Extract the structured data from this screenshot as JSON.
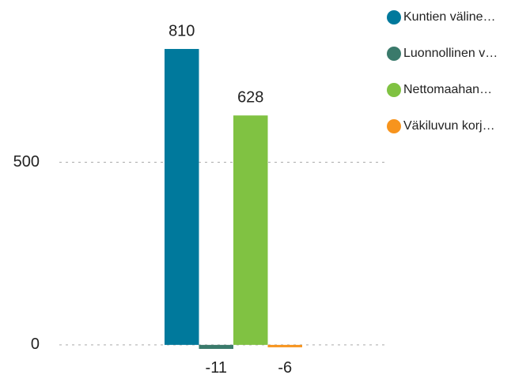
{
  "chart_data": {
    "type": "bar",
    "categories": [
      null
    ],
    "series": [
      {
        "name": "Kuntien väline…",
        "color": "#00799c",
        "values": [
          810
        ]
      },
      {
        "name": "Luonnollinen v…",
        "color": "#3a7a6b",
        "values": [
          -11
        ]
      },
      {
        "name": "Nettomaahan…",
        "color": "#80c242",
        "values": [
          628
        ]
      },
      {
        "name": "Väkiluvun korj…",
        "color": "#f7941d",
        "values": [
          -6
        ]
      }
    ],
    "ylim": [
      -50,
      890
    ],
    "yticks": [
      0,
      500
    ],
    "grid": true,
    "legend": "right"
  }
}
